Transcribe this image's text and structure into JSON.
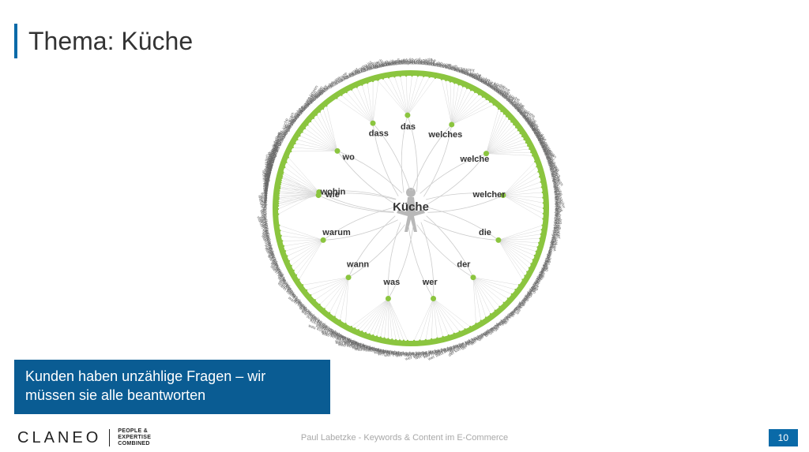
{
  "title": "Thema: Küche",
  "caption": "Kunden haben unzählige Fragen – wir müssen sie alle beantworten",
  "footer": {
    "logo_name": "CLANEO",
    "logo_tag_line1": "PEOPLE &",
    "logo_tag_line2": "EXPERTISE",
    "logo_tag_line3": "COMBINED",
    "center_text": "Paul Labetzke - Keywords & Content im E-Commerce",
    "page_number": "10"
  },
  "colors": {
    "accent": "#0a6aa8",
    "caption_bg": "#0a5c93",
    "ring_green": "#8bc53f",
    "node_green": "#8bc53f",
    "petal_line": "#cccccc",
    "leaf_line": "#d8d8d8",
    "center_fill": "#b8b8b8"
  },
  "diagram": {
    "center_word": "Küche",
    "ring_radius_outer": 175,
    "ring_radius_inner": 168,
    "petal_node_radius": 118,
    "petal_node_dot_r": 3.5,
    "leaf_inner_radius": 178,
    "leaf_text_radius": 184,
    "branches": [
      {
        "word": "wohin",
        "angle": -80,
        "leaves": [
          "wohin küche entsorgen",
          "wohin mit alter küche",
          "wohin mit küchenabfällen",
          "wohin mit küche umzug",
          "wohin küche stellen",
          "wohin küche bauhaus",
          "wohin küche verkaufen",
          "wohin backofen küche",
          "wohin geschirrspüler",
          "wohin steckdosen küche",
          "wohin dunstabzug",
          "wohin mit küchenkram"
        ]
      },
      {
        "word": "wo",
        "angle": -52,
        "leaves": [
          "wo küche kaufen",
          "wo küche planen",
          "wo günstig küche",
          "wo küche online",
          "wo küche aufbauen lassen",
          "wo küche bestellen",
          "wo küche ansehen",
          "wo küche entsorgen",
          "wo küchenstudio",
          "wo küchenplaner",
          "wo ist küche",
          "wo beste küche",
          "wo küchengeräte",
          "wo küche montage"
        ]
      },
      {
        "word": "dass",
        "angle": -24,
        "leaves": [
          "dass küche passt",
          "dass küche günstig ist",
          "dass küche modern",
          "dass küche praktisch",
          "dass küche hell",
          "dass küche offen",
          "dass küche klein",
          "dass küche groß",
          "dass küche teuer"
        ]
      },
      {
        "word": "das",
        "angle": -2,
        "leaves": [
          "das küchenhaus",
          "das küchenstudio",
          "das küchen portal",
          "das küchen magazin",
          "das perfekte küche",
          "das küchenjahr",
          "das küchen abc",
          "das küchen team",
          "das küchen buch",
          "das wohlfühlrestaurant",
          "das küchen quiz"
        ]
      },
      {
        "word": "welches",
        "angle": 26,
        "leaves": [
          "welches holz küche",
          "welches material",
          "welches licht küche",
          "welches parkett für küche",
          "welches laminat für küche",
          "welches öl küche",
          "welches küchengerät",
          "welches silikon für küche",
          "welches vinyl küche",
          "welches weiß für küche",
          "welche fliesen küche",
          "welches holz arbeitsplatte",
          "welches küchen set",
          "welches messer küche"
        ]
      },
      {
        "word": "welche",
        "angle": 54,
        "leaves": [
          "welche küche kaufen",
          "welche küche passt",
          "welche farbe küche",
          "welche küche ist gut",
          "welche küchenmarke",
          "welche wandfarbe",
          "welche arbeitsplatte",
          "welche küche mediterran",
          "welche küche modern",
          "welche küchenform",
          "welche küchenfront",
          "welche küche landhaus",
          "welche küchengeräte",
          "welche küche für mich",
          "welche küche klein raum",
          "welche beste küche",
          "welche teure küche"
        ]
      },
      {
        "word": "welcher",
        "angle": 82,
        "leaves": [
          "welcher boden küche",
          "welcher küchenhersteller",
          "welcher herd küche",
          "welcher kühlschrank",
          "welcher backofen",
          "welcher wasserhahn",
          "welcher dunstabzug",
          "welcher küchenplaner",
          "welcher stil küche",
          "welcher lack küche",
          "welcher putz küche",
          "welcher estrich"
        ]
      },
      {
        "word": "die",
        "angle": 110,
        "leaves": [
          "die küche",
          "die küchenprofis",
          "die perfekte küche",
          "die küchenwelt",
          "die küchenplaner",
          "die beste küche",
          "die moderne küche",
          "die küchenmacher",
          "die neue küche",
          "die kleine küche",
          "die große küche",
          "die küche brennt",
          "die küchenschlacht",
          "die landküche"
        ]
      },
      {
        "word": "der",
        "angle": 138,
        "leaves": [
          "der küchenchef",
          "der küchenplaner",
          "der küchenprofi",
          "der küchenbauer",
          "der küchenladen",
          "der küchentisch",
          "der küchenblock",
          "der küchenfreund",
          "der küchenratgeber",
          "der küchenratgeber test",
          "der oder das küche"
        ]
      },
      {
        "word": "wer",
        "angle": 166,
        "leaves": [
          "wer baut küche",
          "wer baut ikea küche auf",
          "wer plant küche",
          "wer montiert küche",
          "wer kauft alte küche",
          "wer verschenkt küche",
          "wer hat küche",
          "wer würdet ihr",
          "wer liefert küche",
          "wer entsorgt küche",
          "wer verkauft küche"
        ]
      },
      {
        "word": "was",
        "angle": 194,
        "leaves": [
          "was kostet küche",
          "was ist küche",
          "was kostet neue küche",
          "was kostet ikea küche",
          "was kostet küche aufbauen",
          "was kostet küche montage",
          "was kostet küche planen",
          "was braucht küche",
          "was gehört in küche",
          "was kostet küche bei ikea",
          "was kostet einbauküche",
          "was kostet küche mit geräten",
          "was tun küche",
          "küche was muss rein",
          "küche was zuerst",
          "küche was beachten"
        ]
      },
      {
        "word": "wann",
        "angle": 222,
        "leaves": [
          "wann küche kaufen",
          "wann küche planen",
          "wann neue küche",
          "wann küche bestellen",
          "wann ist küche",
          "wann küchen angebote",
          "wann küche günstig",
          "wann küchen sale",
          "wann küche reduziert",
          "wann küche liefern"
        ]
      },
      {
        "word": "warum",
        "angle": 250,
        "leaves": [
          "warum küche teuer",
          "warum offene küche",
          "warum küche weiß",
          "warum küche planen",
          "warum neue küche",
          "warum küche renovieren",
          "warum küche wichtig",
          "warum ikea küche",
          "warum eine küche",
          "warum heisst es küche",
          "warum in die küche",
          "warum so modern"
        ]
      },
      {
        "word": "wie",
        "angle": 278,
        "leaves": [
          "wie küche planen",
          "wie teuer küche",
          "wie küche aufbauen",
          "wie küche streichen",
          "wie küche einrichten",
          "wie küche finanzieren",
          "wie küche renovieren",
          "wie groß küche",
          "wie küche gestalten",
          "wie küche messen",
          "wie küche dekorieren",
          "wie küche reinigen",
          "wie küche putzen",
          "wie küche organisieren",
          "wie küche kaufen",
          "wie küche aussehen"
        ]
      }
    ]
  }
}
